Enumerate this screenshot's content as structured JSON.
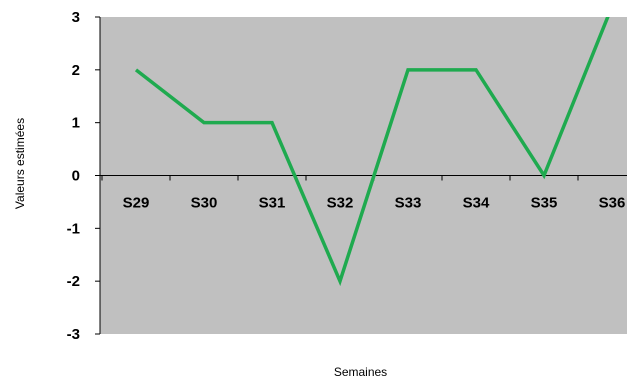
{
  "chart_data": {
    "type": "line",
    "title": "",
    "xlabel": "Semaines",
    "ylabel": "Valeurs estimées",
    "categories": [
      "S29",
      "S30",
      "S31",
      "S32",
      "S33",
      "S34",
      "S35",
      "S36"
    ],
    "series": [
      {
        "values": [
          2,
          1,
          1,
          -2,
          2,
          2,
          0,
          3.2
        ]
      }
    ],
    "ylim": [
      -3,
      3
    ],
    "yticks": [
      "-3",
      "-2",
      "-1",
      "0",
      "1",
      "2",
      "3"
    ],
    "grid": false,
    "legend": "none",
    "colors": {
      "plot_background": "#c0c0c0",
      "line": "#1faa4f",
      "axis": "#000000"
    }
  }
}
